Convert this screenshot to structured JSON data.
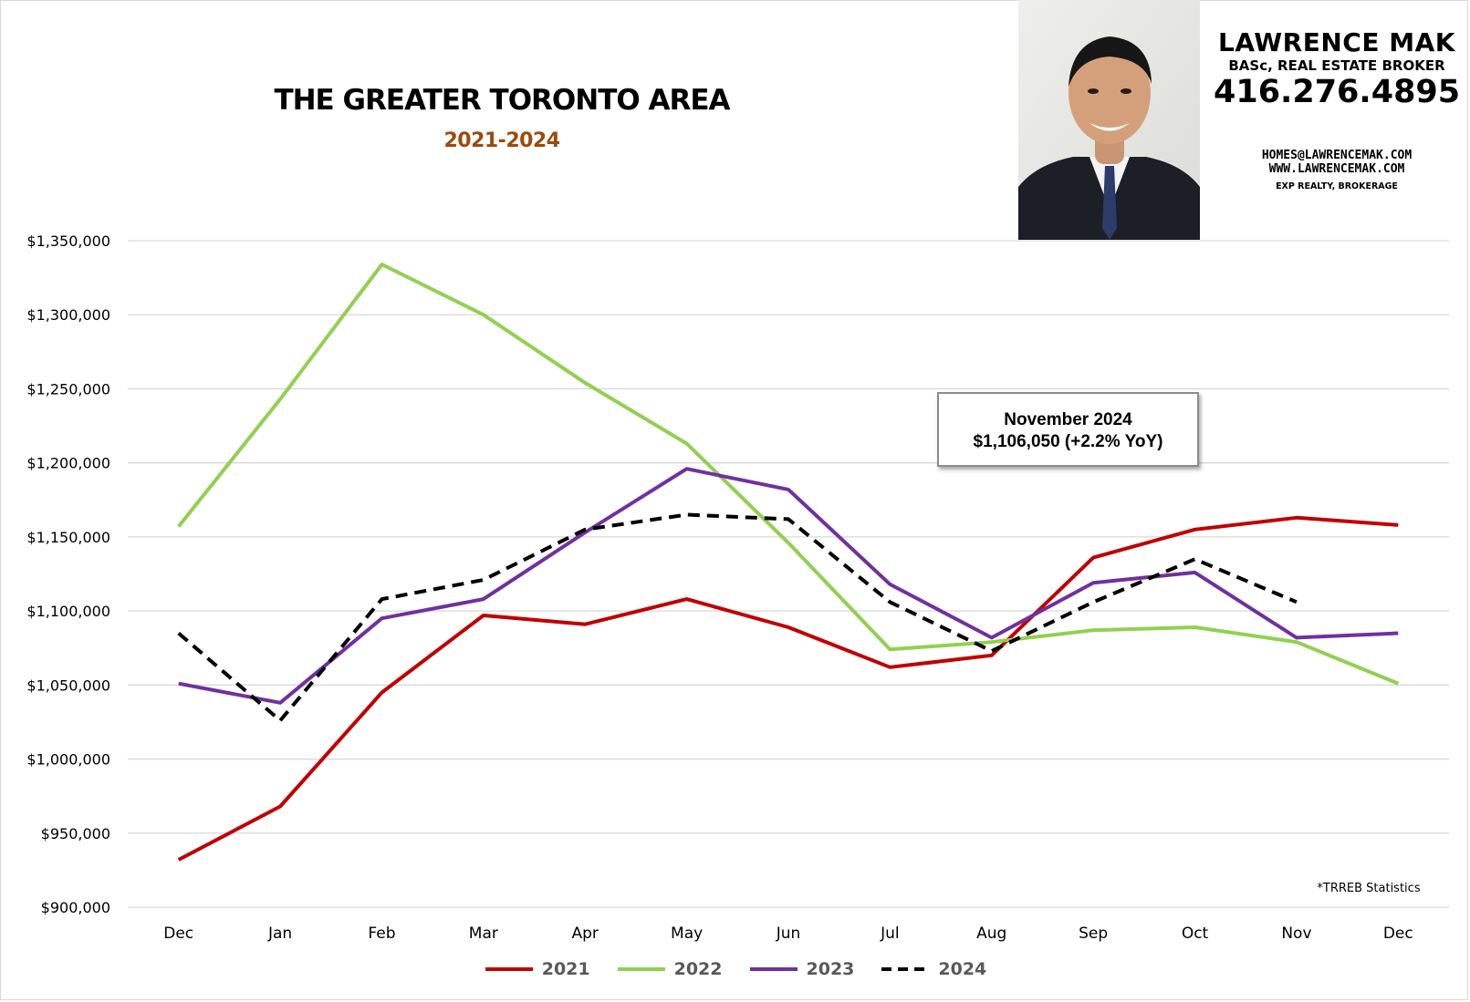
{
  "title": "THE GREATER TORONTO AREA",
  "subtitle": "2021-2024",
  "agent": {
    "name": "LAWRENCE MAK",
    "credentials": "BASc, REAL ESTATE BROKER",
    "phone": "416.276.4895",
    "email": "HOMES@LAWRENCEMAK.COM",
    "website": "WWW.LAWRENCEMAK.COM",
    "brokerage": "EXP REALTY, BROKERAGE"
  },
  "callout": {
    "line1": "November 2024",
    "line2": "$1,106,050 (+2.2% YoY)"
  },
  "source_note": "*TRREB Statistics",
  "colors": {
    "2021": "#c00000",
    "2022": "#92d050",
    "2023": "#7030a0",
    "2024": "#000000",
    "grid": "#d9d9d9",
    "subtitle": "#9c4a0e"
  },
  "chart_data": {
    "type": "line",
    "categories": [
      "Dec",
      "Jan",
      "Feb",
      "Mar",
      "Apr",
      "May",
      "Jun",
      "Jul",
      "Aug",
      "Sep",
      "Oct",
      "Nov",
      "Dec"
    ],
    "y_tick_labels": [
      "$900,000",
      "$950,000",
      "$1,000,000",
      "$1,050,000",
      "$1,100,000",
      "$1,150,000",
      "$1,200,000",
      "$1,250,000",
      "$1,300,000",
      "$1,350,000"
    ],
    "ylim": [
      900000,
      1350000
    ],
    "grid": true,
    "legend_position": "bottom",
    "series": [
      {
        "name": "2021",
        "color": "#c00000",
        "dashed": false,
        "values": [
          932000,
          968000,
          1045000,
          1097000,
          1091000,
          1108000,
          1089000,
          1062000,
          1070000,
          1136000,
          1155000,
          1163000,
          1158000
        ]
      },
      {
        "name": "2022",
        "color": "#92d050",
        "dashed": false,
        "values": [
          1157000,
          1243000,
          1334000,
          1300000,
          1254000,
          1213000,
          1146000,
          1074000,
          1079000,
          1087000,
          1089000,
          1079000,
          1051000
        ]
      },
      {
        "name": "2023",
        "color": "#7030a0",
        "dashed": false,
        "values": [
          1051000,
          1038000,
          1095000,
          1108000,
          1153000,
          1196000,
          1182000,
          1118000,
          1082000,
          1119000,
          1126000,
          1082000,
          1085000
        ]
      },
      {
        "name": "2024",
        "color": "#000000",
        "dashed": true,
        "values": [
          1085000,
          1026000,
          1108000,
          1121000,
          1155000,
          1165000,
          1162000,
          1106000,
          1073000,
          1106000,
          1135000,
          1106050,
          null
        ]
      }
    ]
  }
}
